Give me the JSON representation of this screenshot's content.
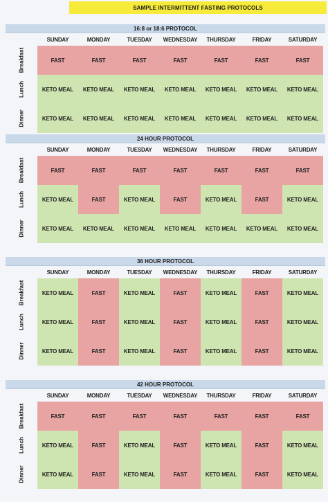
{
  "title": "SAMPLE INTERMITTENT FASTING PROTOCOLS",
  "days": [
    "SUNDAY",
    "MONDAY",
    "TUESDAY",
    "WEDNESDAY",
    "THURSDAY",
    "FRIDAY",
    "SATURDAY"
  ],
  "meals": [
    "Breakfast",
    "Lunch",
    "Dinner"
  ],
  "labels": {
    "fast": "FAST",
    "keto": "KETO MEAL"
  },
  "colors": {
    "fast": "#e8a3a3",
    "keto": "#cfe5b1",
    "header": "#c9d9ea",
    "title": "#f6ea3a"
  },
  "protocols": [
    {
      "name": "16:8 or 18:6 PROTOCOL",
      "rows": [
        [
          "FAST",
          "FAST",
          "FAST",
          "FAST",
          "FAST",
          "FAST",
          "FAST"
        ],
        [
          "KETO MEAL",
          "KETO MEAL",
          "KETO MEAL",
          "KETO MEAL",
          "KETO MEAL",
          "KETO MEAL",
          "KETO MEAL"
        ],
        [
          "KETO MEAL",
          "KETO MEAL",
          "KETO MEAL",
          "KETO MEAL",
          "KETO MEAL",
          "KETO MEAL",
          "KETO MEAL"
        ]
      ]
    },
    {
      "name": "24 HOUR PROTOCOL",
      "rows": [
        [
          "FAST",
          "FAST",
          "FAST",
          "FAST",
          "FAST",
          "FAST",
          "FAST"
        ],
        [
          "KETO MEAL",
          "FAST",
          "KETO MEAL",
          "FAST",
          "KETO MEAL",
          "FAST",
          "KETO MEAL"
        ],
        [
          "KETO MEAL",
          "KETO MEAL",
          "KETO MEAL",
          "KETO MEAL",
          "KETO MEAL",
          "KETO MEAL",
          "KETO MEAL"
        ]
      ]
    },
    {
      "name": "36 HOUR PROTOCOL",
      "rows": [
        [
          "KETO MEAL",
          "FAST",
          "KETO MEAL",
          "FAST",
          "KETO MEAL",
          "FAST",
          "KETO MEAL"
        ],
        [
          "KETO MEAL",
          "FAST",
          "KETO MEAL",
          "FAST",
          "KETO MEAL",
          "FAST",
          "KETO MEAL"
        ],
        [
          "KETO MEAL",
          "FAST",
          "KETO MEAL",
          "FAST",
          "KETO MEAL",
          "FAST",
          "KETO MEAL"
        ]
      ]
    },
    {
      "name": "42 HOUR PROTOCOL",
      "rows": [
        [
          "FAST",
          "FAST",
          "FAST",
          "FAST",
          "FAST",
          "FAST",
          "FAST"
        ],
        [
          "KETO MEAL",
          "FAST",
          "KETO MEAL",
          "FAST",
          "KETO MEAL",
          "FAST",
          "KETO MEAL"
        ],
        [
          "KETO MEAL",
          "FAST",
          "KETO MEAL",
          "FAST",
          "KETO MEAL",
          "FAST",
          "KETO MEAL"
        ]
      ]
    }
  ]
}
